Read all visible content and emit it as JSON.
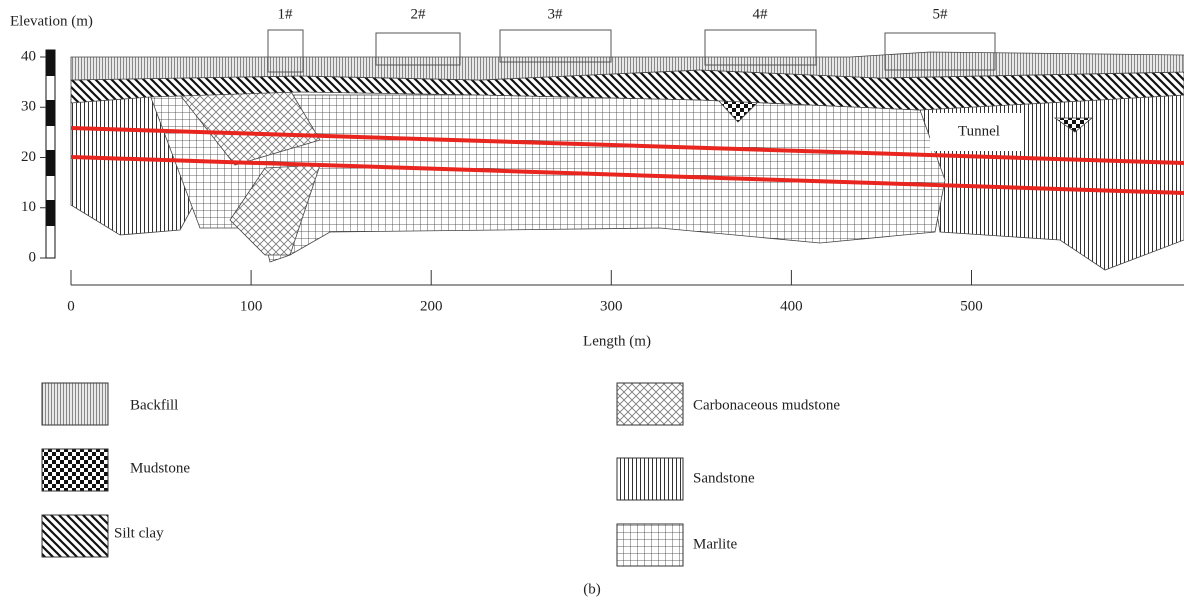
{
  "y_axis": {
    "label": "Elevation (m)",
    "ylim": [
      0,
      40
    ],
    "yticks": [
      0,
      10,
      20,
      30,
      40
    ]
  },
  "x_axis": {
    "label": "Length (m)",
    "xlim": [
      0,
      618
    ],
    "xticks": [
      0,
      100,
      200,
      300,
      400,
      500
    ]
  },
  "buildings": [
    "1#",
    "2#",
    "3#",
    "4#",
    "5#"
  ],
  "tunnel_label": "Tunnel",
  "legend": [
    "Backfill",
    "Mudstone",
    "Silt clay",
    "Carbonaceous mudstone",
    "Sandstone",
    "Marlite"
  ],
  "caption": "(b)"
}
